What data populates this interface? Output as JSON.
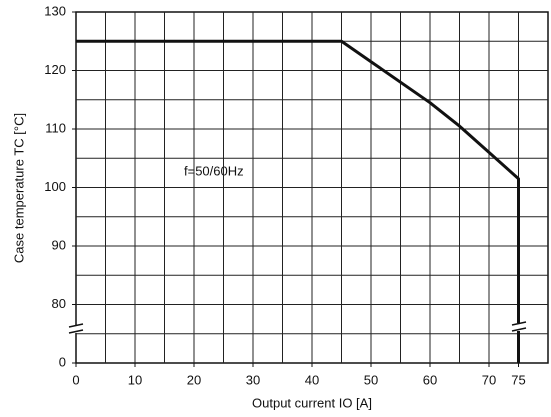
{
  "chart_data": {
    "type": "line",
    "x_label": "Output current IO [A]",
    "y_label": "Case temperature TC [°C]",
    "annotation": "f=50/60Hz",
    "x": [
      0,
      45,
      50,
      60,
      65,
      70,
      75,
      75
    ],
    "series": [
      {
        "color": "#111111",
        "values": [
          125,
          125,
          121.5,
          114.5,
          110.5,
          106,
          101.5,
          0
        ]
      }
    ],
    "xlim": [
      0,
      80
    ],
    "ylim": [
      0,
      130
    ],
    "y_break": [
      0,
      70
    ],
    "xticks": [
      0,
      10,
      20,
      30,
      40,
      50,
      60,
      70,
      75
    ],
    "yticks": [
      0,
      80,
      90,
      100,
      110,
      120,
      130
    ],
    "xgrid": [
      5,
      10,
      15,
      20,
      25,
      30,
      35,
      40,
      45,
      50,
      55,
      60,
      65,
      70,
      75
    ],
    "ygrid": [
      75,
      80,
      85,
      90,
      95,
      100,
      105,
      110,
      115,
      120,
      125
    ],
    "grid": true
  }
}
